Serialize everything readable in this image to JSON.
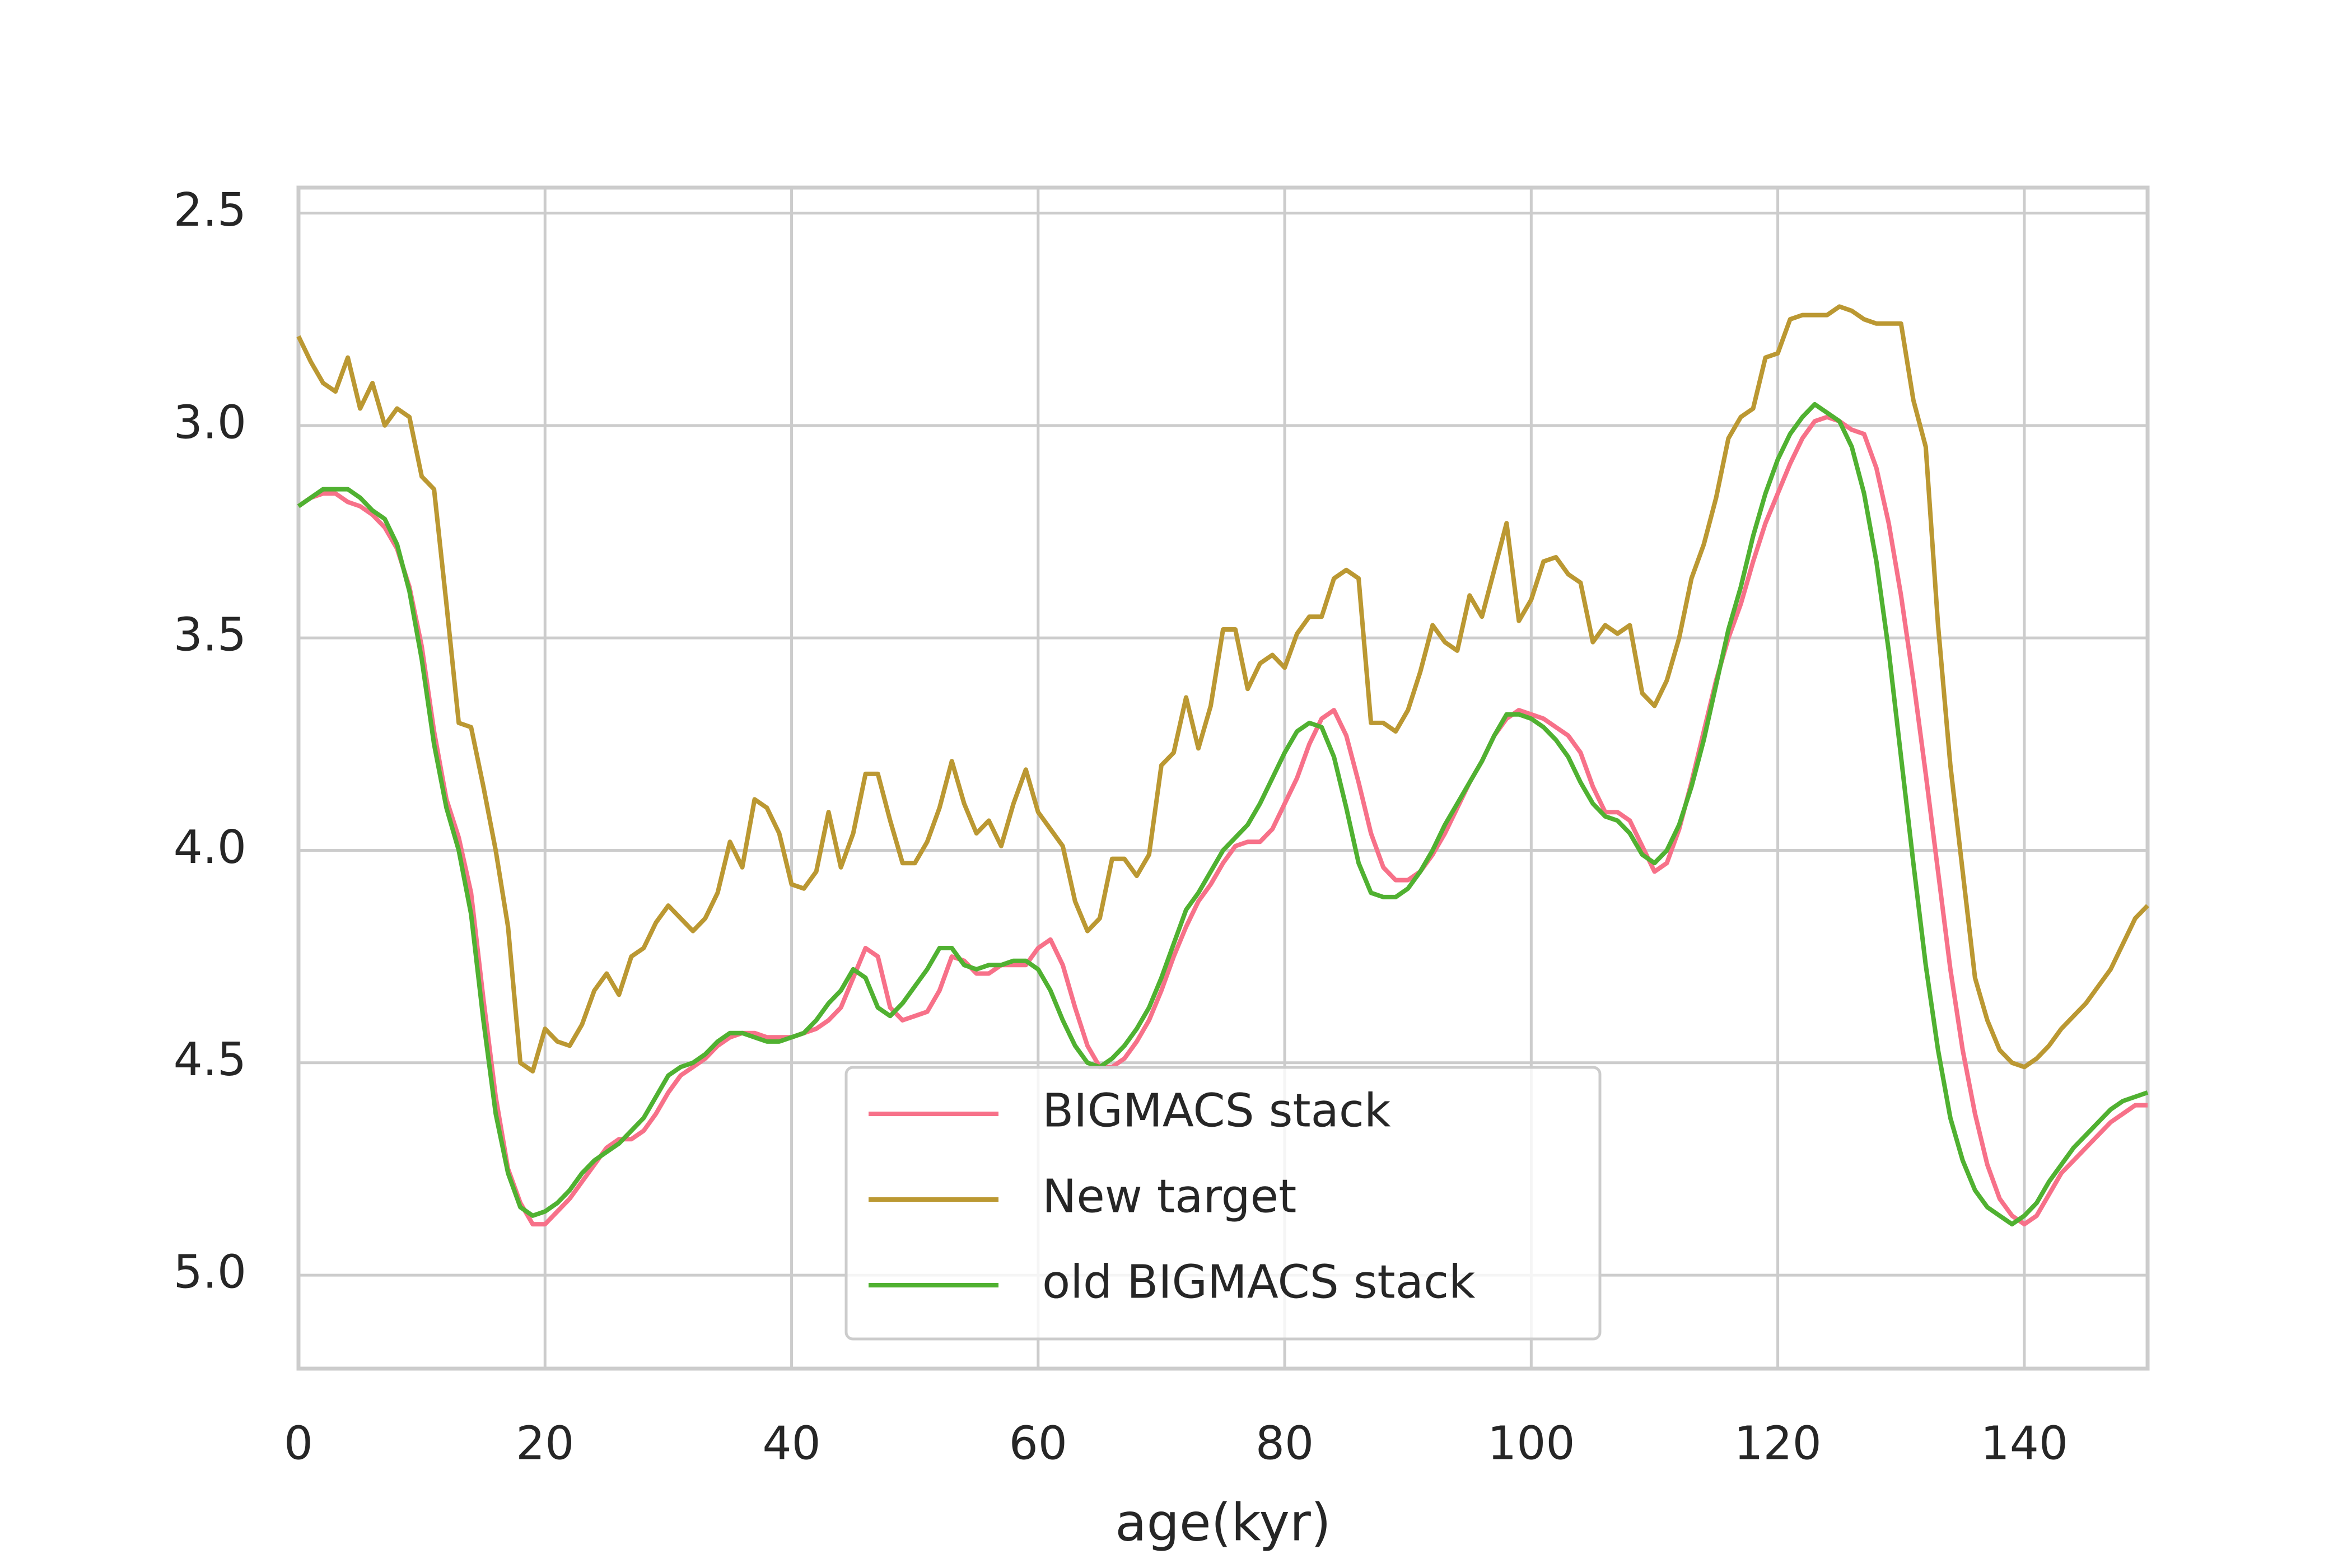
{
  "chart_data": {
    "type": "line",
    "x_label": "age(kyr)",
    "x": [
      0,
      1,
      2,
      3,
      4,
      5,
      6,
      7,
      8,
      9,
      10,
      11,
      12,
      13,
      14,
      15,
      16,
      17,
      18,
      19,
      20,
      21,
      22,
      23,
      24,
      25,
      26,
      27,
      28,
      29,
      30,
      31,
      32,
      33,
      34,
      35,
      36,
      37,
      38,
      39,
      40,
      41,
      42,
      43,
      44,
      45,
      46,
      47,
      48,
      49,
      50,
      51,
      52,
      53,
      54,
      55,
      56,
      57,
      58,
      59,
      60,
      61,
      62,
      63,
      64,
      65,
      66,
      67,
      68,
      69,
      70,
      71,
      72,
      73,
      74,
      75,
      76,
      77,
      78,
      79,
      80,
      81,
      82,
      83,
      84,
      85,
      86,
      87,
      88,
      89,
      90,
      91,
      92,
      93,
      94,
      95,
      96,
      97,
      98,
      99,
      100,
      101,
      102,
      103,
      104,
      105,
      106,
      107,
      108,
      109,
      110,
      111,
      112,
      113,
      114,
      115,
      116,
      117,
      118,
      119,
      120,
      121,
      122,
      123,
      124,
      125,
      126,
      127,
      128,
      129,
      130,
      131,
      132,
      133,
      134,
      135,
      136,
      137,
      138,
      139,
      140,
      141,
      142,
      143,
      144,
      145,
      146,
      147,
      148,
      149,
      150
    ],
    "series": [
      {
        "name": "BIGMACS stack",
        "color": "#f77189",
        "values": [
          3.19,
          3.17,
          3.16,
          3.16,
          3.18,
          3.19,
          3.21,
          3.24,
          3.29,
          3.38,
          3.52,
          3.72,
          3.88,
          3.97,
          4.1,
          4.35,
          4.58,
          4.75,
          4.83,
          4.88,
          4.88,
          4.85,
          4.82,
          4.78,
          4.74,
          4.7,
          4.68,
          4.68,
          4.66,
          4.62,
          4.57,
          4.53,
          4.51,
          4.49,
          4.46,
          4.44,
          4.43,
          4.43,
          4.44,
          4.44,
          4.44,
          4.43,
          4.42,
          4.4,
          4.37,
          4.3,
          4.23,
          4.25,
          4.37,
          4.4,
          4.39,
          4.38,
          4.33,
          4.25,
          4.26,
          4.29,
          4.29,
          4.27,
          4.27,
          4.27,
          4.23,
          4.21,
          4.27,
          4.37,
          4.46,
          4.51,
          4.51,
          4.49,
          4.45,
          4.4,
          4.33,
          4.25,
          4.18,
          4.12,
          4.08,
          4.03,
          3.99,
          3.98,
          3.98,
          3.95,
          3.89,
          3.83,
          3.75,
          3.69,
          3.67,
          3.73,
          3.84,
          3.96,
          4.04,
          4.07,
          4.07,
          4.05,
          4.01,
          3.96,
          3.9,
          3.84,
          3.79,
          3.73,
          3.69,
          3.67,
          3.68,
          3.69,
          3.71,
          3.73,
          3.77,
          3.85,
          3.91,
          3.91,
          3.93,
          3.99,
          4.05,
          4.03,
          3.95,
          3.84,
          3.72,
          3.6,
          3.5,
          3.42,
          3.32,
          3.23,
          3.16,
          3.09,
          3.03,
          2.99,
          2.98,
          2.99,
          3.01,
          3.02,
          3.1,
          3.23,
          3.4,
          3.6,
          3.82,
          4.05,
          4.28,
          4.47,
          4.62,
          4.74,
          4.82,
          4.86,
          4.88,
          4.86,
          4.81,
          4.76,
          4.73,
          4.7,
          4.67,
          4.64,
          4.62,
          4.6,
          4.6
        ]
      },
      {
        "name": "New target",
        "color": "#bb9832",
        "values": [
          2.79,
          2.85,
          2.9,
          2.92,
          2.84,
          2.96,
          2.9,
          3.0,
          2.96,
          2.98,
          3.12,
          3.15,
          3.42,
          3.7,
          3.71,
          3.85,
          4.0,
          4.18,
          4.5,
          4.52,
          4.42,
          4.45,
          4.46,
          4.41,
          4.33,
          4.29,
          4.34,
          4.25,
          4.23,
          4.17,
          4.13,
          4.16,
          4.19,
          4.16,
          4.1,
          3.98,
          4.04,
          3.88,
          3.9,
          3.96,
          4.08,
          4.09,
          4.05,
          3.91,
          4.04,
          3.96,
          3.82,
          3.82,
          3.93,
          4.03,
          4.03,
          3.98,
          3.9,
          3.79,
          3.89,
          3.96,
          3.93,
          3.99,
          3.89,
          3.81,
          3.91,
          3.95,
          3.99,
          4.12,
          4.19,
          4.16,
          4.02,
          4.02,
          4.06,
          4.01,
          3.8,
          3.77,
          3.64,
          3.76,
          3.66,
          3.48,
          3.48,
          3.62,
          3.56,
          3.54,
          3.57,
          3.49,
          3.45,
          3.45,
          3.36,
          3.34,
          3.36,
          3.7,
          3.7,
          3.72,
          3.67,
          3.58,
          3.47,
          3.51,
          3.53,
          3.4,
          3.45,
          3.34,
          3.23,
          3.46,
          3.41,
          3.32,
          3.31,
          3.35,
          3.37,
          3.51,
          3.47,
          3.49,
          3.47,
          3.63,
          3.66,
          3.6,
          3.5,
          3.36,
          3.28,
          3.17,
          3.03,
          2.98,
          2.96,
          2.84,
          2.83,
          2.75,
          2.74,
          2.74,
          2.74,
          2.72,
          2.73,
          2.75,
          2.76,
          2.76,
          2.76,
          2.94,
          3.05,
          3.47,
          3.8,
          4.05,
          4.3,
          4.4,
          4.47,
          4.5,
          4.51,
          4.49,
          4.46,
          4.42,
          4.39,
          4.36,
          4.32,
          4.28,
          4.22,
          4.16,
          4.13
        ]
      },
      {
        "name": "old BIGMACS stack",
        "color": "#50b131",
        "values": [
          3.19,
          3.17,
          3.15,
          3.15,
          3.15,
          3.17,
          3.2,
          3.22,
          3.28,
          3.39,
          3.55,
          3.75,
          3.9,
          4.0,
          4.15,
          4.4,
          4.62,
          4.76,
          4.84,
          4.86,
          4.85,
          4.83,
          4.8,
          4.76,
          4.73,
          4.71,
          4.69,
          4.66,
          4.63,
          4.58,
          4.53,
          4.51,
          4.5,
          4.48,
          4.45,
          4.43,
          4.43,
          4.44,
          4.45,
          4.45,
          4.44,
          4.43,
          4.4,
          4.36,
          4.33,
          4.28,
          4.3,
          4.37,
          4.39,
          4.36,
          4.32,
          4.28,
          4.23,
          4.23,
          4.27,
          4.28,
          4.27,
          4.27,
          4.26,
          4.26,
          4.28,
          4.33,
          4.4,
          4.46,
          4.5,
          4.51,
          4.49,
          4.46,
          4.42,
          4.37,
          4.3,
          4.22,
          4.14,
          4.1,
          4.05,
          4.0,
          3.97,
          3.94,
          3.89,
          3.83,
          3.77,
          3.72,
          3.7,
          3.71,
          3.78,
          3.9,
          4.03,
          4.1,
          4.11,
          4.11,
          4.09,
          4.05,
          4.0,
          3.94,
          3.89,
          3.84,
          3.79,
          3.73,
          3.68,
          3.68,
          3.69,
          3.71,
          3.74,
          3.78,
          3.84,
          3.89,
          3.92,
          3.93,
          3.96,
          4.01,
          4.03,
          4.0,
          3.94,
          3.85,
          3.74,
          3.61,
          3.48,
          3.38,
          3.26,
          3.16,
          3.08,
          3.02,
          2.98,
          2.95,
          2.97,
          2.99,
          3.05,
          3.16,
          3.32,
          3.53,
          3.78,
          4.03,
          4.27,
          4.47,
          4.63,
          4.73,
          4.8,
          4.84,
          4.86,
          4.88,
          4.86,
          4.83,
          4.78,
          4.74,
          4.7,
          4.67,
          4.64,
          4.61,
          4.59,
          4.58,
          4.57
        ]
      }
    ],
    "xlim": [
      0,
      150
    ],
    "xticks": [
      0,
      20,
      40,
      60,
      80,
      100,
      120,
      140
    ],
    "ylim": [
      5.22,
      2.44
    ],
    "yticks": [
      2.5,
      {
        "value": 3,
        "label": "3.0"
      },
      3.5,
      {
        "value": 4,
        "label": "4.0"
      },
      4.5,
      {
        "value": 5,
        "label": "5.0"
      }
    ],
    "grid": true,
    "legend": "lower center"
  }
}
